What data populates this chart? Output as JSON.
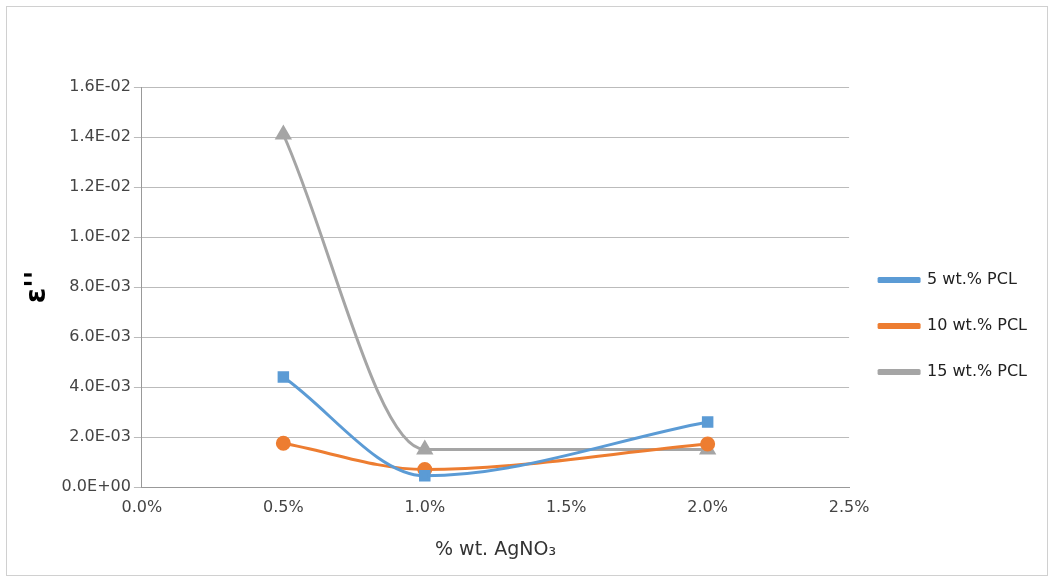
{
  "chart_data": {
    "type": "line",
    "xlabel": "% wt. AgNO₃",
    "ylabel": "ε''",
    "x": [
      0.5,
      1.0,
      2.0
    ],
    "series": [
      {
        "name": "5 wt.% PCL",
        "color": "#5b9bd5",
        "marker": "square",
        "values": [
          0.0044,
          0.00045,
          0.0026
        ]
      },
      {
        "name": "10 wt.% PCL",
        "color": "#ed7d31",
        "marker": "circle",
        "values": [
          0.00175,
          0.0007,
          0.00172
        ]
      },
      {
        "name": "15 wt.% PCL",
        "color": "#a5a5a5",
        "marker": "triangle",
        "values": [
          0.0141,
          0.0015,
          0.0015
        ]
      }
    ],
    "xlim": [
      0,
      2.5
    ],
    "xticks": [
      {
        "value": 0,
        "label": "0.0%"
      },
      {
        "value": 0.5,
        "label": "0.5%"
      },
      {
        "value": 1,
        "label": "1.0%"
      },
      {
        "value": 1.5,
        "label": "1.5%"
      },
      {
        "value": 2,
        "label": "2.0%"
      },
      {
        "value": 2.5,
        "label": "2.5%"
      }
    ],
    "ylim": [
      0,
      0.016
    ],
    "yticks": [
      {
        "value": 0,
        "label": "0.0E+00"
      },
      {
        "value": 0.002,
        "label": "2.0E-03"
      },
      {
        "value": 0.004,
        "label": "4.0E-03"
      },
      {
        "value": 0.006,
        "label": "6.0E-03"
      },
      {
        "value": 0.008,
        "label": "8.0E-03"
      },
      {
        "value": 0.01,
        "label": "1.0E-02"
      },
      {
        "value": 0.012,
        "label": "1.2E-02"
      },
      {
        "value": 0.014,
        "label": "1.4E-02"
      },
      {
        "value": 0.016,
        "label": "1.6E-02"
      }
    ],
    "grid": "y",
    "legend": "right"
  }
}
